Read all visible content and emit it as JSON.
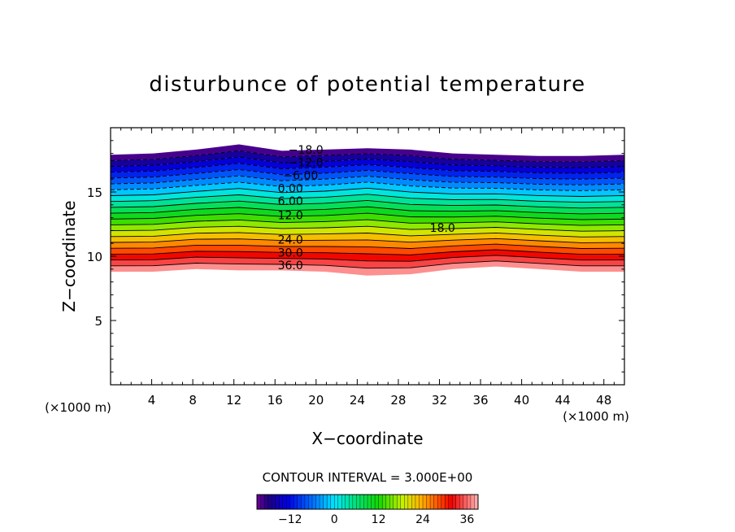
{
  "chart_data": {
    "type": "contour",
    "title": "disturbunce of potential temperature",
    "xlabel": "X−coordinate",
    "ylabel": "Z−coordinate",
    "x_unit_left": "(×1000 m)",
    "x_unit_right": "(×1000 m)",
    "xlim": [
      0,
      50
    ],
    "ylim": [
      0,
      20
    ],
    "x_ticks": [
      4,
      8,
      12,
      16,
      20,
      24,
      28,
      32,
      36,
      40,
      44,
      48
    ],
    "y_ticks": [
      5,
      10,
      15
    ],
    "contour_interval_label": "CONTOUR INTERVAL = 3.000E+00",
    "levels": [
      -21,
      -18,
      -15,
      -12,
      -9,
      -6,
      -3,
      0,
      3,
      6,
      9,
      12,
      15,
      18,
      21,
      24,
      27,
      30,
      33,
      36,
      39
    ],
    "contour_labels": [
      {
        "text": "−18.0",
        "x": 19.0,
        "z": 18.3
      },
      {
        "text": "−12.0",
        "x": 19.0,
        "z": 17.3
      },
      {
        "text": "−6.00",
        "x": 18.5,
        "z": 16.3
      },
      {
        "text": "0.00",
        "x": 17.5,
        "z": 15.3
      },
      {
        "text": "6.00",
        "x": 17.5,
        "z": 14.3
      },
      {
        "text": "12.0",
        "x": 17.5,
        "z": 13.2
      },
      {
        "text": "18.0",
        "x": 32.3,
        "z": 12.2
      },
      {
        "text": "24.0",
        "x": 17.5,
        "z": 11.3
      },
      {
        "text": "30.0",
        "x": 17.5,
        "z": 10.3
      },
      {
        "text": "36.0",
        "x": 17.5,
        "z": 9.3
      }
    ],
    "field_top_z": [
      17.9,
      18.0,
      18.3,
      18.7,
      18.2,
      18.3,
      18.4,
      18.3,
      18.0,
      17.9,
      17.8,
      17.8,
      17.9
    ],
    "field_bottom_z": [
      8.8,
      8.8,
      9.0,
      8.9,
      8.9,
      8.8,
      8.5,
      8.6,
      9.0,
      9.2,
      9.0,
      8.8,
      8.8
    ],
    "colorbar": {
      "tick_labels": [
        "−12",
        "0",
        "12",
        "24",
        "36"
      ],
      "tick_values": [
        -12,
        0,
        12,
        24,
        36
      ],
      "range": [
        -21,
        39
      ]
    }
  }
}
